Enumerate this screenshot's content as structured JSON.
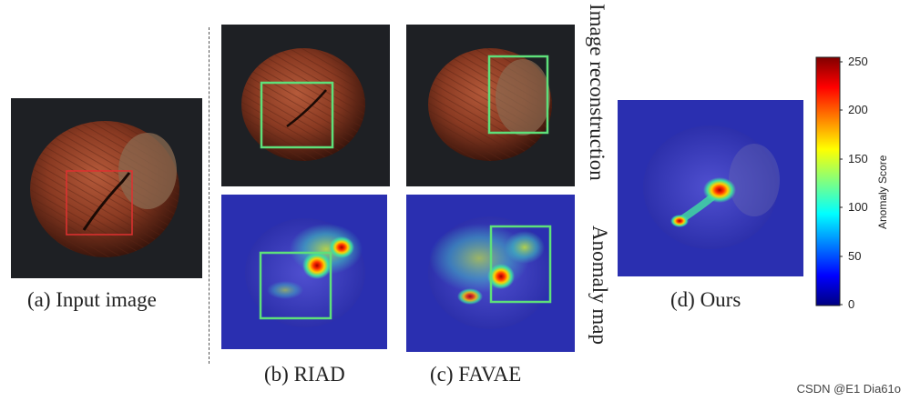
{
  "captions": {
    "input": "(a) Input image",
    "riad": "(b) RIAD",
    "favae": "(c) FAVAE",
    "ours": "(d) Ours"
  },
  "row_labels": {
    "top": "Image reconstruction",
    "bottom": "Anomaly map"
  },
  "colorbar": {
    "title": "Anomaly Score",
    "ticks": [
      "250",
      "200",
      "150",
      "100",
      "50",
      "0"
    ],
    "colormap": "jet"
  },
  "watermark": "CSDN @E1 Dia61o",
  "colors": {
    "input_box": "#e03030",
    "highlight_box": "#5ee07a",
    "photo_bg": "#1e2024",
    "heatmap_bg": "#2a2fb0"
  }
}
